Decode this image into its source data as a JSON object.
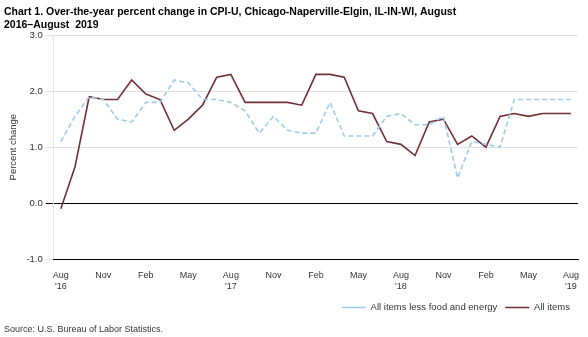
{
  "chart_data": {
    "type": "line",
    "title": "Chart 1. Over-the-year percent change in CPI-U, Chicago-Naperville-Elgin, IL-IN-WI, August\n2016–August  2019",
    "ylabel": "Percent change",
    "source": "Source: U.S. Bureau of Labor Statistics.",
    "categories": [
      "Aug\n'16",
      null,
      null,
      "Nov",
      null,
      null,
      "Feb",
      null,
      null,
      "May",
      null,
      null,
      "Aug\n'17",
      null,
      null,
      "Nov",
      null,
      null,
      "Feb",
      null,
      null,
      "May",
      null,
      null,
      "Aug\n'18",
      null,
      null,
      "Nov",
      null,
      null,
      "Feb",
      null,
      null,
      "May",
      null,
      null,
      "Aug\n'19"
    ],
    "series": [
      {
        "name": "All items less food and energy",
        "color": "#99CCEE",
        "line_style": "dashed",
        "values": [
          1.1,
          1.55,
          1.9,
          1.85,
          1.5,
          1.45,
          1.8,
          1.8,
          2.2,
          2.15,
          1.85,
          1.85,
          1.8,
          1.65,
          1.25,
          1.55,
          1.3,
          1.25,
          1.25,
          1.8,
          1.2,
          1.2,
          1.2,
          1.55,
          1.6,
          1.4,
          1.4,
          1.55,
          0.45,
          1.1,
          1.05,
          1.0,
          1.85,
          1.85,
          1.85,
          1.85,
          1.85
        ]
      },
      {
        "name": "All items",
        "color": "#722F37",
        "line_style": "solid",
        "values": [
          -0.1,
          0.65,
          1.9,
          1.85,
          1.85,
          2.2,
          1.95,
          1.85,
          1.3,
          1.5,
          1.75,
          2.25,
          2.3,
          1.8,
          1.8,
          1.8,
          1.8,
          1.75,
          2.3,
          2.3,
          2.25,
          1.65,
          1.6,
          1.1,
          1.05,
          0.85,
          1.45,
          1.5,
          1.05,
          1.2,
          1.0,
          1.55,
          1.6,
          1.55,
          1.6,
          1.6,
          1.6
        ]
      }
    ],
    "ylim": [
      -1.0,
      3.0
    ],
    "yticks": [
      {
        "value": -1.0,
        "label": "-1.0"
      },
      {
        "value": 0.0,
        "label": "0.0"
      },
      {
        "value": 1.0,
        "label": "1.0"
      },
      {
        "value": 2.0,
        "label": "2.0"
      },
      {
        "value": 3.0,
        "label": "3.0"
      }
    ],
    "grid": true,
    "legend": "bottom"
  }
}
